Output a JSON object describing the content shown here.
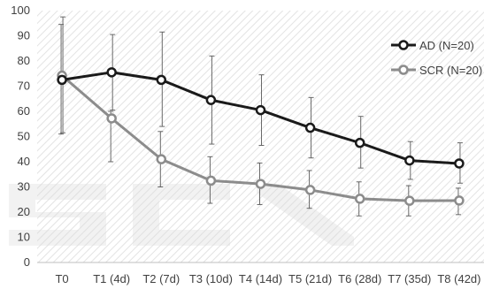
{
  "chart_data": {
    "type": "line",
    "categories": [
      "T0",
      "T1 (4d)",
      "T2 (7d)",
      "T3 (10d)",
      "T4 (14d)",
      "T5 (21d)",
      "T6 (28d)",
      "T7 (35d)",
      "T8 (42d)"
    ],
    "ylim": [
      0,
      100
    ],
    "yticks": [
      0,
      10,
      20,
      30,
      40,
      50,
      60,
      70,
      80,
      90,
      100
    ],
    "grid": false,
    "legend_position": "top-right",
    "series": [
      {
        "name": "AD (N=20)",
        "color": "#1a1a1a",
        "marker_fill": "#ffffff",
        "values": [
          72.5,
          75.5,
          72.5,
          64.5,
          60.5,
          53.5,
          47.5,
          40.5,
          39.3
        ],
        "error_upper": [
          97.5,
          90.5,
          91.5,
          82,
          74.5,
          65.5,
          58,
          48,
          47.5
        ],
        "error_lower": [
          51.5,
          60.5,
          54,
          47,
          46.5,
          41.5,
          37.5,
          33,
          31.5
        ]
      },
      {
        "name": "SCR (N=20)",
        "color": "#8c8c8c",
        "marker_fill": "#ffffff",
        "values": [
          74.2,
          57.2,
          41,
          32.5,
          31.2,
          28.8,
          25.3,
          24.5,
          24.6
        ],
        "error_upper": [
          94.5,
          60,
          52,
          42,
          39.5,
          36.5,
          32,
          30.5,
          29.5
        ],
        "error_lower": [
          51,
          40,
          30,
          23.5,
          23,
          21.5,
          18.5,
          18.5,
          19
        ]
      }
    ]
  },
  "watermark": {
    "text": "SCITEPRESS"
  }
}
